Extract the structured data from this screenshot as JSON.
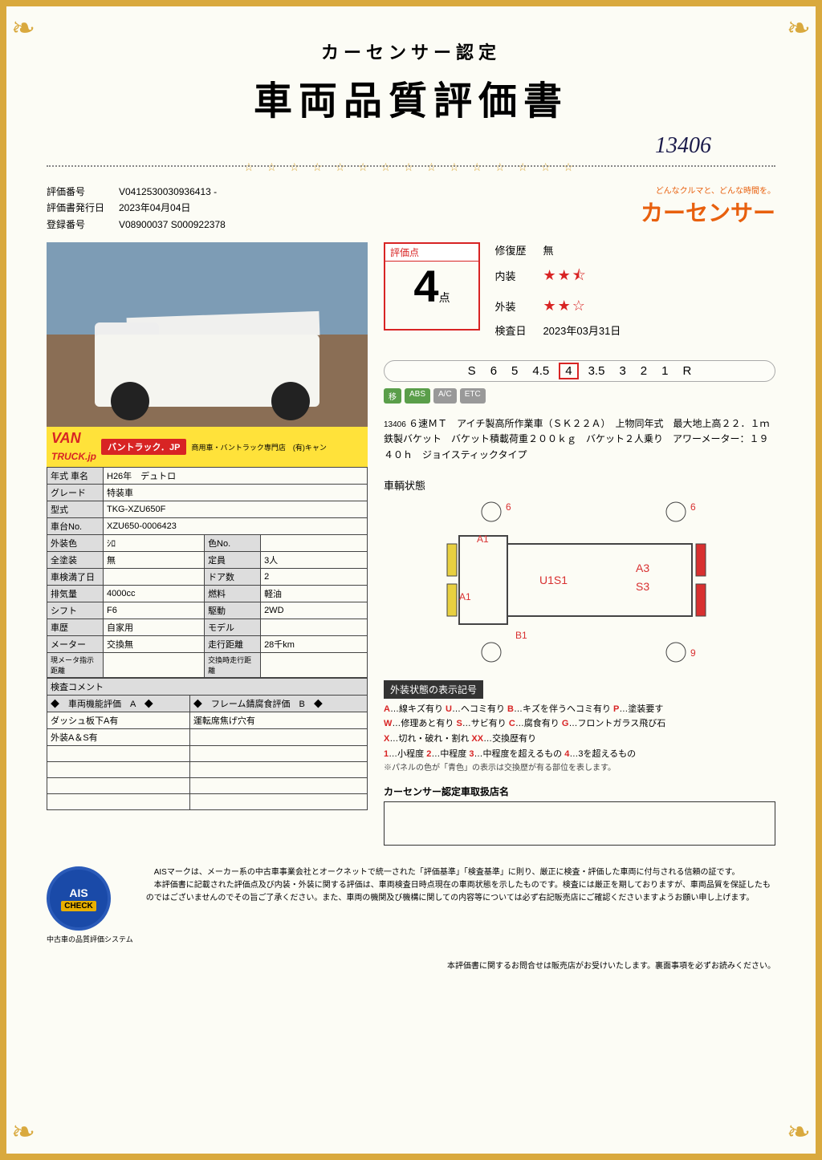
{
  "header": {
    "subtitle": "カーセンサー認定",
    "maintitle": "車両品質評価書",
    "handwritten_number": "13406"
  },
  "meta": {
    "eval_no_label": "評価番号",
    "eval_no": "V0412530030936413 -",
    "issue_label": "評価書発行日",
    "issue_date": "2023年04月04日",
    "reg_label": "登録番号",
    "reg_no": "V08900037 S000922378"
  },
  "brand": {
    "tagline": "どんなクルマと、どんな時間を。",
    "name": "カーセンサー"
  },
  "banner": {
    "logo1": "VAN",
    "logo2": "TRUCK.jp",
    "kana": "バントラック．JP",
    "sub": "商用車・バントラック専門店　(有)キャン"
  },
  "spec": {
    "year_label": "年式 車名",
    "year": "H26年　デュトロ",
    "grade_label": "グレード",
    "grade": "特装車",
    "model_label": "型式",
    "model": "TKG-XZU650F",
    "chassis_label": "車台No.",
    "chassis": "XZU650-0006423",
    "extcol_label": "外装色",
    "extcol": "ｼﾛ",
    "colno_label": "色No.",
    "colno": "",
    "repaint_label": "全塗装",
    "repaint": "無",
    "cap_label": "定員",
    "cap": "3人",
    "shaken_label": "車検満了日",
    "shaken": "",
    "doors_label": "ドア数",
    "doors": "2",
    "disp_label": "排気量",
    "disp": "4000cc",
    "fuel_label": "燃料",
    "fuel": "軽油",
    "shift_label": "シフト",
    "shift": "F6",
    "drive_label": "駆動",
    "drive": "2WD",
    "hist_label": "車歴",
    "hist": "自家用",
    "mdl2_label": "モデル",
    "mdl2": "",
    "meter_label": "メーター",
    "meter": "交換無",
    "dist_label": "走行距離",
    "dist": "28千km",
    "curmeter_label": "現メータ指示距離",
    "swap_label": "交換時走行距離"
  },
  "comments": {
    "title": "検査コメント",
    "h1": "◆　車両機能評価　A　◆",
    "h2": "◆　フレーム錆腐食評価　B　◆",
    "r1a": "ダッシュ板下A有",
    "r1b": "運転席焦げ穴有",
    "r2a": "外装A＆S有",
    "r2b": ""
  },
  "score": {
    "label": "評価点",
    "value": "4",
    "unit": "点",
    "repair_k": "修復歴",
    "repair_v": "無",
    "int_k": "内装",
    "int_stars": "★★⯪",
    "ext_k": "外装",
    "ext_stars": "★★☆",
    "insp_k": "検査日",
    "insp_v": "2023年03月31日"
  },
  "scale": {
    "items": [
      "S",
      "6",
      "5",
      "4.5",
      "4",
      "3.5",
      "3",
      "2",
      "1",
      "R"
    ],
    "selected": "4"
  },
  "badges": {
    "b1": "移",
    "b2": "ABS",
    "b3": "A/C",
    "b4": "ETC"
  },
  "desc": {
    "num": "13406",
    "text": "６速ＭＴ　アイチ製高所作業車（ＳＫ２２Ａ）　上物同年式　最大地上高２２．１ｍ　鉄製バケット　バケット積載荷重２００ｋｇ　バケット２人乗り　アワーメーター：１９４０ｈ　ジョイスティックタイプ"
  },
  "diagram": {
    "title": "車輌状態",
    "marks": {
      "a1": "A1",
      "a1b": "A1",
      "b1": "B1",
      "u1s1": "U1S1",
      "a3": "A3",
      "s3": "S3",
      "c6a": "6",
      "c6b": "6",
      "c9": "9"
    }
  },
  "legend": {
    "header": "外装状態の表示記号",
    "l1": "A…線キズ有り U…ヘコミ有り B…キズを伴うヘコミ有り P…塗装要す",
    "l2": "W…修理あと有り S…サビ有り C…腐食有り G…フロントガラス飛び石",
    "l3": "X…切れ・破れ・割れ XX…交換歴有り",
    "l4": "1…小程度 2…中程度 3…中程度を超えるもの 4…3を超えるもの",
    "note": "※パネルの色が「青色」の表示は交換歴が有る部位を表します。"
  },
  "dealer": {
    "header": "カーセンサー認定車取扱店名"
  },
  "ais": {
    "name": "AIS",
    "check": "CHECK",
    "caption": "中古車の品質評価システム",
    "text": "　AISマークは、メーカー系の中古車事業会社とオークネットで統一された「評価基準」「検査基準」に則り、厳正に検査・評価した車両に付与される信頼の証です。\n　本評価書に記載された評価点及び内装・外装に関する評価は、車両検査日時点現在の車両状態を示したものです。検査には厳正を期しておりますが、車両品質を保証したものではございませんのでその旨ご了承ください。また、車両の機関及び機構に関しての内容等については必ず右記販売店にご確認くださいますようお願い申し上げます。"
  },
  "bottom": {
    "note": "本評価書に関するお問合せは販売店がお受けいたします。裏面事項を必ずお読みください。"
  }
}
